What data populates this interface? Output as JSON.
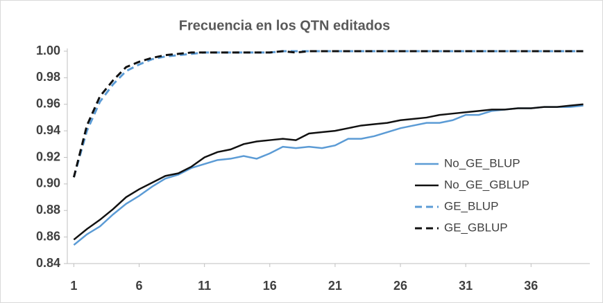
{
  "chart_data": {
    "type": "line",
    "title": "Frecuencia en los QTN editados",
    "x": [
      1,
      2,
      3,
      4,
      5,
      6,
      7,
      8,
      9,
      10,
      11,
      12,
      13,
      14,
      15,
      16,
      17,
      18,
      19,
      20,
      21,
      22,
      23,
      24,
      25,
      26,
      27,
      28,
      29,
      30,
      31,
      32,
      33,
      34,
      35,
      36,
      37,
      38,
      39,
      40
    ],
    "xlim": [
      0.5,
      40.5
    ],
    "xticks": [
      1,
      6,
      11,
      16,
      21,
      26,
      31,
      36
    ],
    "ylim": [
      0.84,
      1.0
    ],
    "yticks": [
      0.84,
      0.86,
      0.88,
      {
        "value": 0.9,
        "label": "0.90"
      },
      0.92,
      0.94,
      0.96,
      0.98,
      {
        "value": 1,
        "label": "1.00"
      }
    ],
    "legend": "right",
    "series": [
      {
        "name": "No_GE_BLUP",
        "color": "#5B9BD5",
        "dash": false,
        "values": [
          0.854,
          0.862,
          0.868,
          0.877,
          0.885,
          0.891,
          0.898,
          0.904,
          0.907,
          0.912,
          0.915,
          0.918,
          0.919,
          0.921,
          0.919,
          0.923,
          0.928,
          0.927,
          0.928,
          0.927,
          0.929,
          0.934,
          0.934,
          0.936,
          0.939,
          0.942,
          0.944,
          0.946,
          0.946,
          0.948,
          0.952,
          0.952,
          0.955,
          0.956,
          0.957,
          0.957,
          0.958,
          0.958,
          0.958,
          0.959
        ]
      },
      {
        "name": "No_GE_GBLUP",
        "color": "#111111",
        "dash": false,
        "values": [
          0.858,
          0.866,
          0.873,
          0.881,
          0.89,
          0.896,
          0.901,
          0.906,
          0.908,
          0.913,
          0.92,
          0.924,
          0.926,
          0.93,
          0.932,
          0.933,
          0.934,
          0.933,
          0.938,
          0.939,
          0.94,
          0.942,
          0.944,
          0.945,
          0.946,
          0.948,
          0.949,
          0.95,
          0.952,
          0.953,
          0.954,
          0.955,
          0.956,
          0.956,
          0.957,
          0.957,
          0.958,
          0.958,
          0.959,
          0.96
        ]
      },
      {
        "name": "GE_BLUP",
        "color": "#5B9BD5",
        "dash": true,
        "values": [
          0.905,
          0.94,
          0.962,
          0.975,
          0.985,
          0.99,
          0.994,
          0.996,
          0.997,
          0.998,
          0.999,
          0.999,
          0.999,
          0.999,
          0.999,
          0.999,
          1.0,
          1.0,
          1.0,
          1.0,
          1.0,
          1.0,
          1.0,
          1.0,
          1.0,
          1.0,
          1.0,
          1.0,
          1.0,
          1.0,
          1.0,
          1.0,
          1.0,
          1.0,
          1.0,
          1.0,
          1.0,
          1.0,
          1.0,
          1.0
        ]
      },
      {
        "name": "GE_GBLUP",
        "color": "#111111",
        "dash": true,
        "values": [
          0.905,
          0.944,
          0.966,
          0.978,
          0.988,
          0.992,
          0.995,
          0.997,
          0.998,
          0.999,
          0.999,
          0.999,
          0.999,
          0.999,
          0.999,
          0.999,
          1.0,
          0.999,
          1.0,
          1.0,
          1.0,
          1.0,
          1.0,
          1.0,
          1.0,
          1.0,
          1.0,
          1.0,
          1.0,
          1.0,
          1.0,
          1.0,
          1.0,
          1.0,
          1.0,
          1.0,
          1.0,
          1.0,
          1.0,
          1.0
        ]
      }
    ]
  }
}
